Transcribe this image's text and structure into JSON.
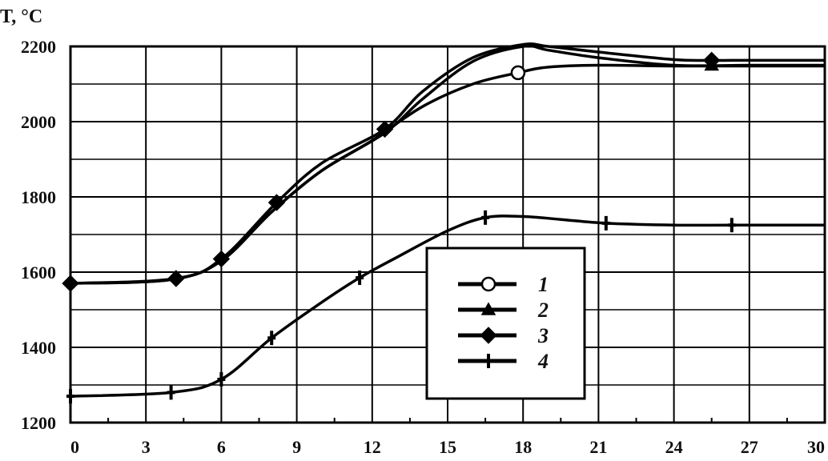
{
  "chart_data": {
    "type": "line",
    "title": "",
    "xlabel": "",
    "ylabel": "T, °C",
    "xlim": [
      0,
      30
    ],
    "ylim": [
      1200,
      2200
    ],
    "x_ticks": [
      "0",
      "3",
      "6",
      "9",
      "12",
      "15",
      "18",
      "21",
      "24",
      "27",
      "30"
    ],
    "y_ticks": [
      "1200",
      "1400",
      "1600",
      "1800",
      "2000",
      "2200"
    ],
    "grid": true,
    "legend_position": "center-right",
    "series": [
      {
        "name": "1",
        "marker": "circle-open",
        "x": [
          0,
          4,
          6,
          8,
          10,
          12,
          14,
          16,
          17.8,
          19,
          21,
          24,
          27,
          30
        ],
        "y": [
          1570,
          1580,
          1630,
          1760,
          1870,
          1950,
          2040,
          2100,
          2130,
          2145,
          2150,
          2148,
          2148,
          2148
        ],
        "markers_at": [
          17.8
        ]
      },
      {
        "name": "2",
        "marker": "triangle",
        "x": [
          0,
          4,
          6,
          8,
          10,
          12.5,
          14,
          16,
          18,
          19,
          21,
          24,
          27,
          30
        ],
        "y": [
          1570,
          1580,
          1630,
          1760,
          1870,
          1970,
          2060,
          2160,
          2200,
          2190,
          2170,
          2150,
          2150,
          2150
        ],
        "markers_at": [
          25.5
        ]
      },
      {
        "name": "3",
        "marker": "diamond",
        "x": [
          0,
          4.2,
          6,
          8.2,
          10,
          12.5,
          14,
          16,
          18,
          19,
          21,
          24,
          25.5,
          27,
          30
        ],
        "y": [
          1570,
          1583,
          1635,
          1785,
          1890,
          1980,
          2080,
          2170,
          2205,
          2200,
          2185,
          2165,
          2163,
          2163,
          2163
        ],
        "markers_at": [
          0,
          4.2,
          6,
          8.2,
          12.5,
          25.5
        ]
      },
      {
        "name": "4",
        "marker": "cross",
        "x": [
          0,
          4,
          6,
          8,
          10,
          11.5,
          13,
          15,
          16.5,
          18,
          19.5,
          21.3,
          24,
          26.3,
          30
        ],
        "y": [
          1270,
          1280,
          1315,
          1425,
          1520,
          1585,
          1640,
          1710,
          1745,
          1748,
          1740,
          1730,
          1725,
          1725,
          1725
        ],
        "markers_at": [
          0,
          4,
          6,
          8,
          11.5,
          16.5,
          21.3,
          26.3
        ]
      }
    ]
  }
}
